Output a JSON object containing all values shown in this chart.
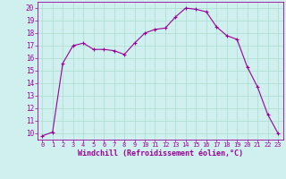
{
  "x": [
    0,
    1,
    2,
    3,
    4,
    5,
    6,
    7,
    8,
    9,
    10,
    11,
    12,
    13,
    14,
    15,
    16,
    17,
    18,
    19,
    20,
    21,
    22,
    23
  ],
  "y": [
    9.8,
    10.1,
    15.6,
    17.0,
    17.2,
    16.7,
    16.7,
    16.6,
    16.3,
    17.2,
    18.0,
    18.3,
    18.4,
    19.3,
    20.0,
    19.9,
    19.7,
    18.5,
    17.8,
    17.5,
    15.3,
    13.7,
    11.5,
    10.0
  ],
  "line_color": "#990099",
  "marker": "+",
  "marker_size": 3,
  "xlabel": "Windchill (Refroidissement éolien,°C)",
  "ylabel_ticks": [
    10,
    11,
    12,
    13,
    14,
    15,
    16,
    17,
    18,
    19,
    20
  ],
  "xtick_labels": [
    "0",
    "1",
    "2",
    "3",
    "4",
    "5",
    "6",
    "7",
    "8",
    "9",
    "10",
    "11",
    "12",
    "13",
    "14",
    "15",
    "16",
    "17",
    "18",
    "19",
    "20",
    "21",
    "22",
    "23"
  ],
  "xlim": [
    -0.5,
    23.5
  ],
  "ylim": [
    9.5,
    20.5
  ],
  "bg_color": "#cff0ee",
  "grid_color": "#aaddcc",
  "tick_color": "#990099",
  "label_color": "#990099",
  "spine_color": "#990099"
}
